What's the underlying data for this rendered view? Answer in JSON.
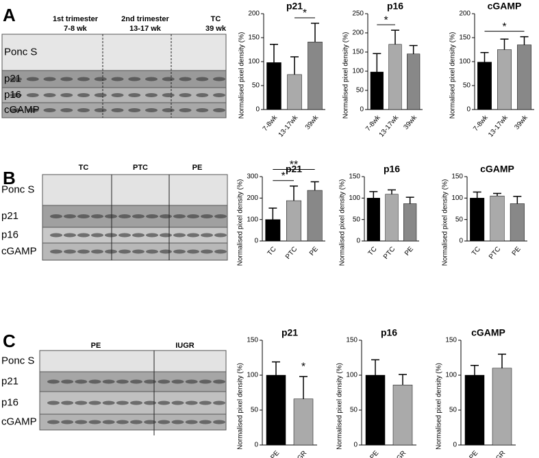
{
  "panels": [
    "A",
    "B",
    "C"
  ],
  "blots": [
    {
      "rows": [
        "Ponc S",
        "p21",
        "p16",
        "cGAMP"
      ],
      "groups": [
        [
          "1st trimester",
          "7-8 wk"
        ],
        [
          "2nd trimester",
          "13-17 wk"
        ],
        [
          "TC",
          "39 wk"
        ]
      ]
    },
    {
      "rows": [
        "Ponc S",
        "p21",
        "p16",
        "cGAMP"
      ],
      "groups": [
        [
          "TC"
        ],
        [
          "PTC"
        ],
        [
          "PE"
        ]
      ]
    },
    {
      "rows": [
        "Ponc S",
        "p21",
        "p16",
        "cGAMP"
      ],
      "groups": [
        [
          "PE"
        ],
        [
          "IUGR"
        ]
      ]
    }
  ],
  "chart_data": [
    {
      "type": "bar",
      "title": "p21",
      "y_label": "Normalised pixel density (%)",
      "categories": [
        "7-8wk",
        "13-17wk",
        "39wk"
      ],
      "values": [
        98,
        73,
        141
      ],
      "errors": [
        38,
        37,
        39
      ],
      "colors": [
        "#000000",
        "#aaaaaa",
        "#888888"
      ],
      "ylim": [
        0,
        200
      ],
      "yticks": [
        0,
        50,
        100,
        150,
        200
      ],
      "annotations": [
        {
          "text": "*",
          "categories": [
            "13-17wk",
            "39wk"
          ]
        }
      ]
    },
    {
      "type": "bar",
      "title": "p16",
      "y_label": "Normalised pixel density (%)",
      "categories": [
        "7-8wk",
        "13-17wk",
        "39wk"
      ],
      "values": [
        98,
        170,
        145
      ],
      "errors": [
        48,
        37,
        22
      ],
      "colors": [
        "#000000",
        "#aaaaaa",
        "#888888"
      ],
      "ylim": [
        0,
        250
      ],
      "yticks": [
        0,
        50,
        100,
        150,
        200,
        250
      ],
      "annotations": [
        {
          "text": "*",
          "categories": [
            "7-8wk",
            "13-17wk"
          ]
        }
      ]
    },
    {
      "type": "bar",
      "title": "cGAMP",
      "y_label": "Normalised pixel density (%)",
      "categories": [
        "7-8wk",
        "13-17wk",
        "39wk"
      ],
      "values": [
        99,
        125,
        135
      ],
      "errors": [
        20,
        22,
        17
      ],
      "colors": [
        "#000000",
        "#aaaaaa",
        "#888888"
      ],
      "ylim": [
        0,
        200
      ],
      "yticks": [
        0,
        50,
        100,
        150,
        200
      ],
      "annotations": [
        {
          "text": "*",
          "categories": [
            "7-8wk",
            "39wk"
          ]
        }
      ]
    },
    {
      "type": "bar",
      "title": "p21",
      "y_label": "Normalised pixel density (%)",
      "categories": [
        "TC",
        "PTC",
        "PE"
      ],
      "values": [
        100,
        188,
        236
      ],
      "errors": [
        53,
        68,
        40
      ],
      "colors": [
        "#000000",
        "#aaaaaa",
        "#888888"
      ],
      "ylim": [
        0,
        300
      ],
      "yticks": [
        0,
        100,
        200,
        300
      ],
      "annotations": [
        {
          "text": "*",
          "categories": [
            "TC",
            "PTC"
          ]
        },
        {
          "text": "**",
          "categories": [
            "TC",
            "PE"
          ]
        }
      ]
    },
    {
      "type": "bar",
      "title": "p16",
      "y_label": "Normalised pixel density (%)",
      "categories": [
        "TC",
        "PTC",
        "PE"
      ],
      "values": [
        100,
        109,
        87
      ],
      "errors": [
        15,
        10,
        15
      ],
      "colors": [
        "#000000",
        "#aaaaaa",
        "#888888"
      ],
      "ylim": [
        0,
        150
      ],
      "yticks": [
        0,
        50,
        100,
        150
      ]
    },
    {
      "type": "bar",
      "title": "cGAMP",
      "y_label": "Normalised pixel density (%)",
      "categories": [
        "TC",
        "PTC",
        "PE"
      ],
      "values": [
        100,
        105,
        87
      ],
      "errors": [
        14,
        6,
        17
      ],
      "colors": [
        "#000000",
        "#aaaaaa",
        "#888888"
      ],
      "ylim": [
        0,
        150
      ],
      "yticks": [
        0,
        50,
        100,
        150
      ]
    },
    {
      "type": "bar",
      "title": "p21",
      "y_label": "Normalised pixel density (%)",
      "categories": [
        "PE",
        "IUGR"
      ],
      "values": [
        100,
        66
      ],
      "errors": [
        19,
        32
      ],
      "colors": [
        "#000000",
        "#aaaaaa"
      ],
      "ylim": [
        0,
        150
      ],
      "yticks": [
        0,
        50,
        100,
        150
      ],
      "annotations": [
        {
          "text": "*",
          "categories": [
            "IUGR"
          ]
        }
      ]
    },
    {
      "type": "bar",
      "title": "p16",
      "y_label": "Normalised pixel density (%)",
      "categories": [
        "PE",
        "IUGR"
      ],
      "values": [
        100,
        86
      ],
      "errors": [
        22,
        15
      ],
      "colors": [
        "#000000",
        "#aaaaaa"
      ],
      "ylim": [
        0,
        150
      ],
      "yticks": [
        0,
        50,
        100,
        150
      ]
    },
    {
      "type": "bar",
      "title": "cGAMP",
      "y_label": "Normalised pixel density (%)",
      "categories": [
        "PE",
        "IUGR"
      ],
      "values": [
        100,
        110
      ],
      "errors": [
        14,
        20
      ],
      "colors": [
        "#000000",
        "#aaaaaa"
      ],
      "ylim": [
        0,
        150
      ],
      "yticks": [
        0,
        50,
        100,
        150
      ]
    }
  ]
}
